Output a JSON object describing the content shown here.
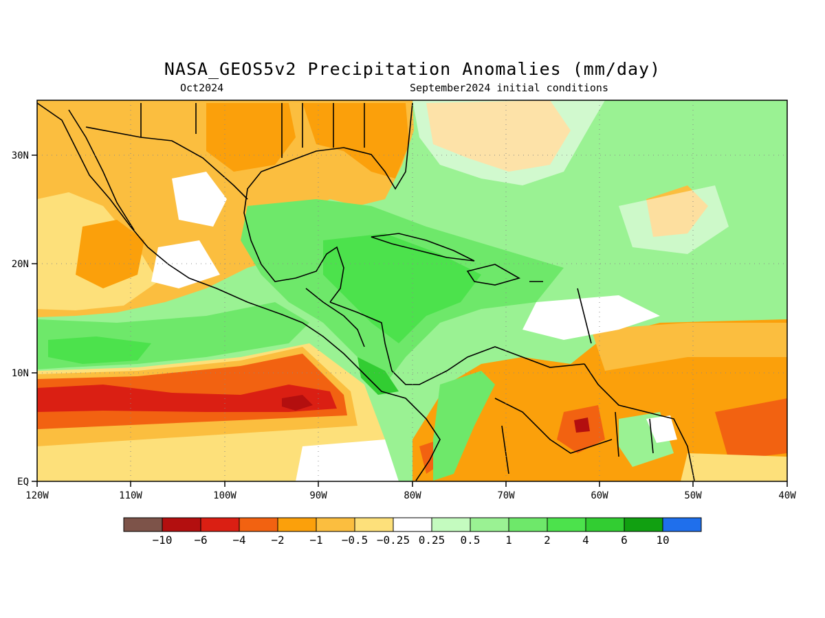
{
  "title": "NASA_GEOS5v2 Precipitation Anomalies (mm/day)",
  "subtitle_left": "Oct2024",
  "subtitle_right": "September2024 initial conditions",
  "map": {
    "lon_range": [
      -120,
      -40
    ],
    "lat_range": [
      0,
      35
    ],
    "x_tick_labels": [
      "120W",
      "110W",
      "100W",
      "90W",
      "80W",
      "70W",
      "60W",
      "50W",
      "40W"
    ],
    "y_tick_labels": [
      "EQ",
      "10N",
      "20N",
      "30N"
    ],
    "grid": true
  },
  "colorbar": {
    "colors": [
      "#7d5349",
      "#b30f0f",
      "#da1f13",
      "#f26211",
      "#fba00b",
      "#fbbe3f",
      "#fde07a",
      "#ffffff",
      "#c4fbbf",
      "#9af293",
      "#6ee86a",
      "#4ce24c",
      "#32cd32",
      "#11a011",
      "#1f6fec"
    ],
    "labels": [
      "-10",
      "-6",
      "-4",
      "-2",
      "-1",
      "-0.5",
      "-0.25",
      "0.25",
      "0.5",
      "1",
      "2",
      "4",
      "6",
      "10"
    ]
  }
}
